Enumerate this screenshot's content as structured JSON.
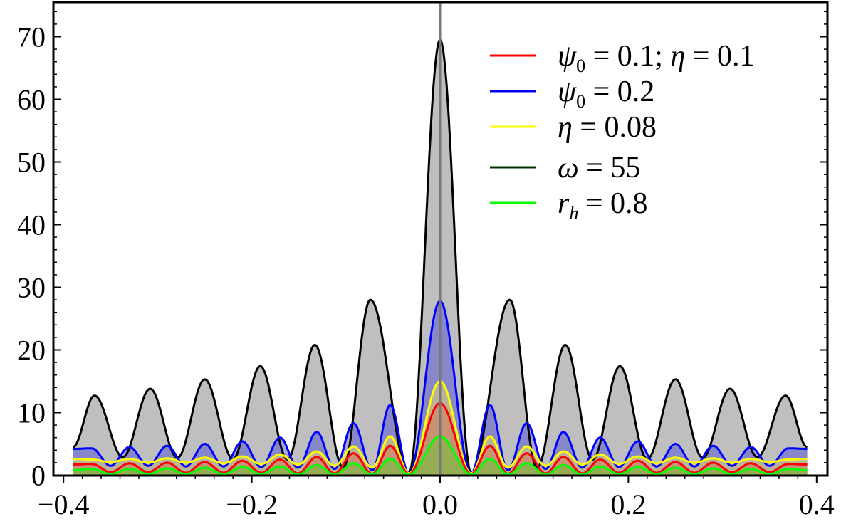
{
  "chart_data": {
    "type": "area",
    "title": "",
    "xlabel": "",
    "ylabel": "",
    "xlim": [
      -0.39,
      0.39
    ],
    "ylim": [
      0,
      75
    ],
    "x_ticks": [
      -0.4,
      -0.2,
      0.0,
      0.2,
      0.4
    ],
    "x_tick_labels": [
      "−0.4",
      "−0.2",
      "0.0",
      "0.2",
      "0.4"
    ],
    "y_ticks": [
      0,
      10,
      20,
      30,
      40,
      50,
      60,
      70
    ],
    "y_tick_labels": [
      "0",
      "10",
      "20",
      "30",
      "40",
      "50",
      "60",
      "70"
    ],
    "grid": false,
    "legend_position": "top-right",
    "central_vertical_line_x": 0.0,
    "pattern": {
      "shape": "interference fringes |sin(a x)/sin(b x)|-type, symmetric about x = 0",
      "main_lobe_half_width": 0.033,
      "secondary_peak_spacing": 0.0585
    },
    "series": [
      {
        "name": "ω = 55",
        "color": "#000000",
        "fill": "#bfbfbf",
        "peak_x": [
          0.0,
          0.074,
          0.133,
          0.191,
          0.25,
          0.308,
          0.367
        ],
        "peak_y": [
          69.5,
          28,
          20.8,
          17.4,
          15.3,
          13.8,
          12.7
        ],
        "min_x": [
          0.033,
          0.103,
          0.162,
          0.22,
          0.279,
          0.337
        ],
        "min_y": [
          0.4,
          1.2,
          2.5,
          2.6,
          2.8,
          2.9
        ],
        "edge_value": 4.5
      },
      {
        "name": "ψ₀ = 0.2",
        "color": "#0000ff",
        "fill": "rgba(90,90,210,0.55)",
        "peak_x": [
          0.0,
          0.053,
          0.092,
          0.131,
          0.17,
          0.21,
          0.25,
          0.29,
          0.33,
          0.37
        ],
        "peak_y": [
          27.8,
          11.2,
          8.3,
          6.9,
          6.0,
          5.4,
          5.0,
          4.7,
          4.5,
          4.3
        ],
        "min_x": [
          0.033,
          0.072,
          0.112,
          0.151,
          0.19,
          0.23,
          0.27,
          0.31,
          0.35
        ],
        "min_y": [
          0.3,
          0.8,
          1.0,
          1.2,
          1.3,
          1.4,
          1.4,
          1.5,
          1.5
        ],
        "edge_value": 4.2
      },
      {
        "name": "η = 0.08",
        "color": "#ffff00",
        "fill": "rgba(225,215,110,0.55)",
        "peak_x": [
          0.0,
          0.053,
          0.092,
          0.131,
          0.17,
          0.21,
          0.25,
          0.29,
          0.33,
          0.37
        ],
        "peak_y": [
          15.0,
          6.2,
          4.6,
          3.8,
          3.3,
          3.0,
          2.8,
          2.7,
          2.6,
          2.5
        ],
        "min_x": [
          0.033,
          0.072,
          0.112,
          0.151,
          0.19,
          0.23,
          0.27,
          0.31,
          0.35
        ],
        "min_y": [
          0.3,
          1.2,
          1.5,
          1.7,
          1.8,
          1.9,
          2.0,
          2.0,
          2.1
        ],
        "edge_value": 2.6
      },
      {
        "name": "ψ₀ = 0.1; η = 0.1",
        "color": "#ff0000",
        "fill": "rgba(210,120,90,0.55)",
        "peak_x": [
          0.0,
          0.053,
          0.092,
          0.131,
          0.17,
          0.21,
          0.25,
          0.29,
          0.33,
          0.37
        ],
        "peak_y": [
          11.5,
          4.7,
          3.5,
          2.9,
          2.5,
          2.3,
          2.1,
          2.0,
          1.9,
          1.8
        ],
        "min_x": [
          0.033,
          0.072,
          0.112,
          0.151,
          0.19,
          0.23,
          0.27,
          0.31,
          0.35
        ],
        "min_y": [
          0.2,
          0.2,
          0.3,
          0.3,
          0.4,
          0.4,
          0.4,
          0.5,
          0.5
        ],
        "edge_value": 1.7
      },
      {
        "name": "rₕ = 0.8",
        "color": "#00ff00",
        "fill": "rgba(120,190,60,0.6)",
        "peak_x": [
          0.0,
          0.053,
          0.092,
          0.131,
          0.17,
          0.21,
          0.25,
          0.29,
          0.33,
          0.37
        ],
        "peak_y": [
          6.2,
          2.6,
          1.9,
          1.6,
          1.4,
          1.3,
          1.2,
          1.1,
          1.0,
          1.0
        ],
        "min_x": [
          0.033,
          0.072,
          0.112,
          0.151,
          0.19,
          0.23,
          0.27,
          0.31,
          0.35
        ],
        "min_y": [
          0.1,
          0.1,
          0.1,
          0.1,
          0.2,
          0.2,
          0.2,
          0.2,
          0.2
        ],
        "edge_value": 0.8
      }
    ],
    "legend": [
      {
        "color": "#ff0000",
        "sym": "ψ",
        "sub": "0",
        "rest": " = 0.1; ",
        "sym2": "η",
        "rest2": " = 0.1"
      },
      {
        "color": "#0000ff",
        "sym": "ψ",
        "sub": "0",
        "rest": " = 0.2",
        "sym2": "",
        "rest2": ""
      },
      {
        "color": "#ffff00",
        "sym": "η",
        "sub": "",
        "rest": " = 0.08",
        "sym2": "",
        "rest2": ""
      },
      {
        "color": "#003300",
        "sym": "ω",
        "sub": "",
        "rest": " = 55",
        "sym2": "",
        "rest2": ""
      },
      {
        "color": "#00ff00",
        "sym": "r",
        "sub": "h",
        "rest": " = 0.8",
        "sym2": "",
        "rest2": ""
      }
    ]
  }
}
